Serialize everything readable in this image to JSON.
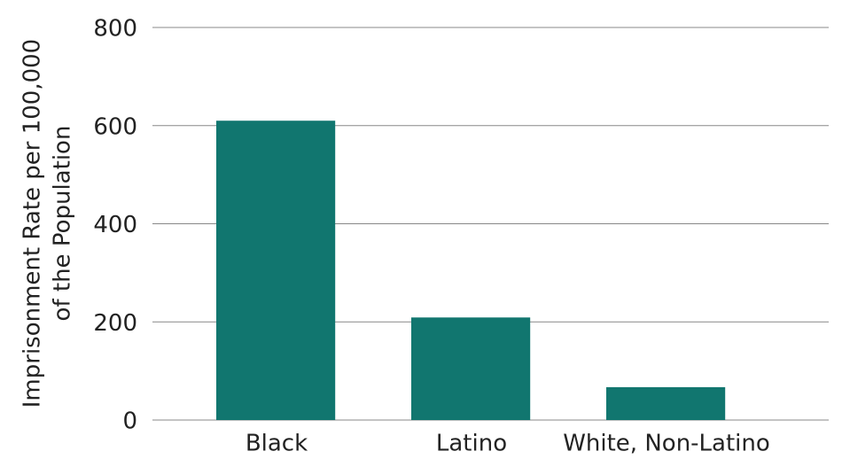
{
  "chart_data": {
    "type": "bar",
    "ylabel": [
      "Imprisonment Rate per 100,000",
      "of the Population"
    ],
    "categories": [
      "Black",
      "Latino",
      "White, Non-Latino"
    ],
    "values": [
      610,
      209,
      67
    ],
    "color": "#11766f",
    "ylim": [
      0,
      800
    ],
    "yticks": [
      0,
      200,
      400,
      600,
      800
    ],
    "grid": true
  }
}
